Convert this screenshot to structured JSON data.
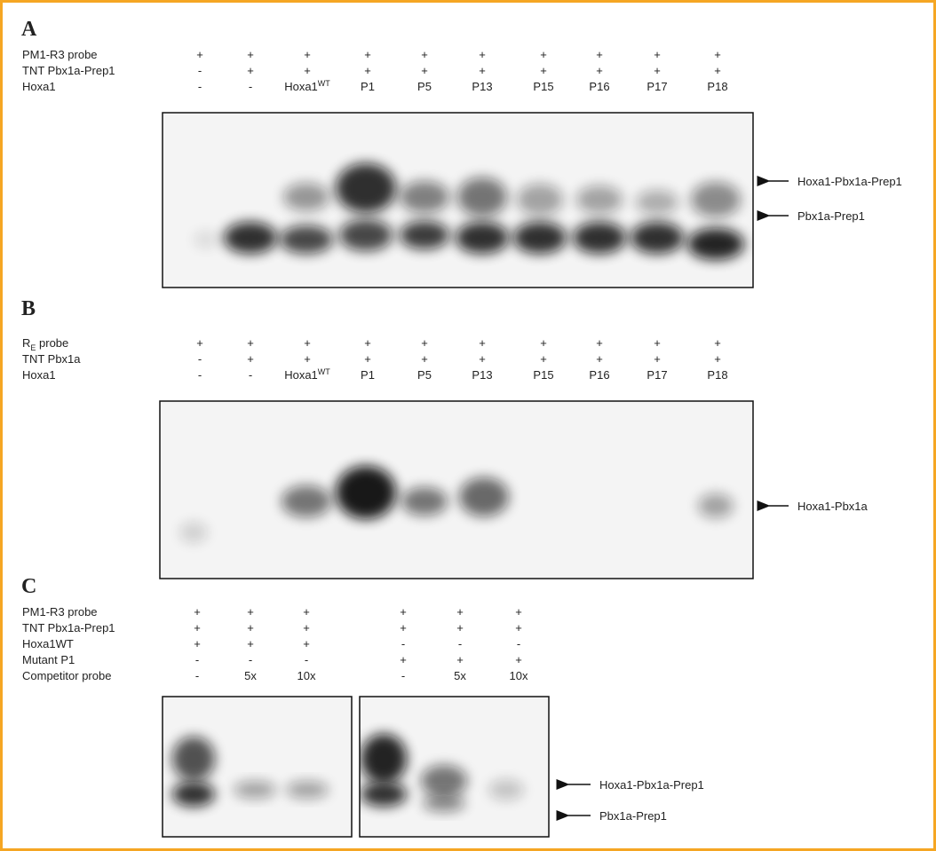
{
  "panels": [
    {
      "label": "A",
      "rows": [
        {
          "label": "PM1-R3 probe",
          "lanes": [
            "+",
            "+",
            "+",
            "+",
            "+",
            "+",
            "+",
            "+",
            "+",
            "+"
          ]
        },
        {
          "label": "TNT Pbx1a-Prep1",
          "lanes": [
            "-",
            "+",
            "+",
            "+",
            "+",
            "+",
            "+",
            "+",
            "+",
            "+"
          ]
        },
        {
          "label": "Hoxa1",
          "lanes": [
            "-",
            "-",
            {
              "base": "Hoxa1",
              "sup": "WT"
            },
            "P1",
            "P5",
            "P13",
            "P15",
            "P16",
            "P17",
            "P18"
          ]
        }
      ],
      "arrows": [
        "Hoxa1-Pbx1a-Prep1",
        "Pbx1a-Prep1"
      ]
    },
    {
      "label": "B",
      "rows": [
        {
          "label": {
            "base": "R",
            "sub": "E",
            "tail": " probe"
          },
          "lanes": [
            "+",
            "+",
            "+",
            "+",
            "+",
            "+",
            "+",
            "+",
            "+",
            "+"
          ]
        },
        {
          "label": "TNT Pbx1a",
          "lanes": [
            "-",
            "+",
            "+",
            "+",
            "+",
            "+",
            "+",
            "+",
            "+",
            "+"
          ]
        },
        {
          "label": "Hoxa1",
          "lanes": [
            "-",
            "-",
            {
              "base": "Hoxa1",
              "sup": "WT"
            },
            "P1",
            "P5",
            "P13",
            "P15",
            "P16",
            "P17",
            "P18"
          ]
        }
      ],
      "arrows": [
        "Hoxa1-Pbx1a"
      ]
    },
    {
      "label": "C",
      "rows": [
        {
          "label": "PM1-R3 probe",
          "lanes": [
            "+",
            "+",
            "+",
            "+",
            "+",
            "+"
          ]
        },
        {
          "label": "TNT Pbx1a-Prep1",
          "lanes": [
            "+",
            "+",
            "+",
            "+",
            "+",
            "+"
          ]
        },
        {
          "label": "Hoxa1WT",
          "lanes": [
            "+",
            "+",
            "+",
            "-",
            "-",
            "-"
          ]
        },
        {
          "label": "Mutant P1",
          "lanes": [
            "-",
            "-",
            "-",
            "+",
            "+",
            "+"
          ]
        },
        {
          "label": "Competitor probe",
          "lanes": [
            "-",
            "5x",
            "10x",
            "-",
            "5x",
            "10x"
          ]
        }
      ],
      "arrows": [
        "Hoxa1-Pbx1a-Prep1",
        "Pbx1a-Prep1"
      ]
    }
  ]
}
